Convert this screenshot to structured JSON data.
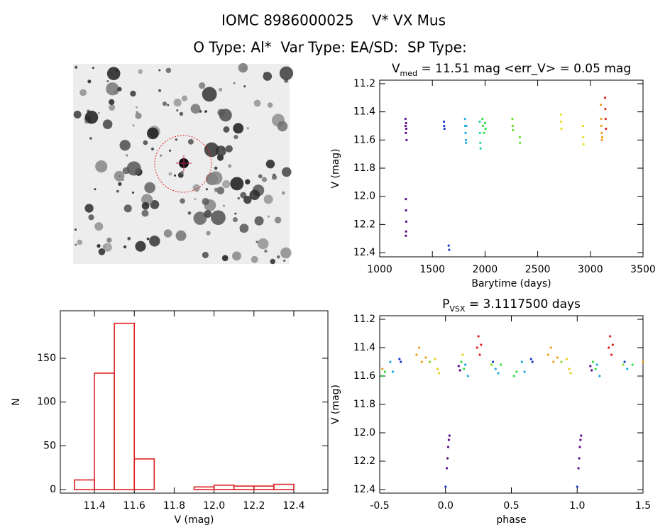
{
  "header": {
    "title": "IOMC 8986000025    V* VX Mus",
    "subtitle": "O Type: Al*  Var Type: EA/SD:  SP Type:"
  },
  "chart_data": [
    {
      "type": "scatter",
      "title": "V",
      "title_sub": "med",
      "title_rest": " = 11.51 mag <err_V> = 0.05 mag",
      "x_label": "Barytime (days)",
      "y_label": "V (mag)",
      "xlim": [
        1000,
        3500
      ],
      "ylim": [
        12.43,
        11.175
      ],
      "xticks": [
        1000,
        1500,
        2000,
        2500,
        3000,
        3500
      ],
      "yticks": [
        11.2,
        11.4,
        11.6,
        11.8,
        {
          "value": 12,
          "label": "12.0"
        },
        12.2,
        12.4
      ],
      "series": [
        {
          "color": "#5a0a8a",
          "x": [
            1245,
            1245,
            1248,
            1250,
            1252,
            1255,
            1248,
            1250,
            1252,
            1250,
            1248
          ],
          "values": [
            11.45,
            11.5,
            11.55,
            11.48,
            11.52,
            11.6,
            12.02,
            12.1,
            12.18,
            12.25,
            12.28
          ]
        },
        {
          "color": "#1a3cc8",
          "x": [
            1610,
            1612,
            1615,
            1655,
            1660
          ],
          "values": [
            11.47,
            11.5,
            11.52,
            12.35,
            12.38
          ]
        },
        {
          "color": "#20a8e0",
          "x": [
            1810,
            1812,
            1815,
            1818,
            1820,
            1822
          ],
          "values": [
            11.45,
            11.5,
            11.55,
            11.6,
            11.62,
            11.5
          ]
        },
        {
          "color": "#20d0b0",
          "x": [
            1950,
            1952,
            1955,
            1958
          ],
          "values": [
            11.47,
            11.55,
            11.62,
            11.66
          ]
        },
        {
          "color": "#30e040",
          "x": [
            1975,
            1980,
            1990,
            2000,
            2005
          ],
          "values": [
            11.45,
            11.5,
            11.55,
            11.48,
            11.52
          ]
        },
        {
          "color": "#60e020",
          "x": [
            2260,
            2262,
            2265,
            2330,
            2332
          ],
          "values": [
            11.45,
            11.5,
            11.53,
            11.58,
            11.62
          ]
        },
        {
          "color": "#e8e020",
          "x": [
            2720,
            2722,
            2725,
            2930,
            2932,
            2935
          ],
          "values": [
            11.42,
            11.47,
            11.52,
            11.5,
            11.58,
            11.63
          ]
        },
        {
          "color": "#f0a020",
          "x": [
            3100,
            3102,
            3105,
            3108,
            3110,
            3112
          ],
          "values": [
            11.35,
            11.45,
            11.5,
            11.55,
            11.6,
            11.58
          ]
        },
        {
          "color": "#e02020",
          "x": [
            3140,
            3142,
            3145,
            3148
          ],
          "values": [
            11.3,
            11.38,
            11.45,
            11.52
          ]
        }
      ]
    },
    {
      "type": "histogram",
      "x_label": "V (mag)",
      "y_label": "N",
      "color": "#e02020",
      "xlim": [
        11.229,
        12.571
      ],
      "ylim": [
        -4.05,
        204.3
      ],
      "xticks": [
        11.4,
        11.6,
        11.8,
        {
          "value": 12,
          "label": "12.0"
        },
        12.2,
        12.4
      ],
      "yticks": [
        0,
        50,
        100,
        150
      ],
      "bins": [
        11.3,
        11.4,
        11.5,
        11.6,
        11.7,
        11.8,
        11.9,
        12.0,
        12.1,
        12.2,
        12.3,
        12.4
      ],
      "values": [
        11,
        133,
        190,
        35,
        0,
        0,
        3,
        5,
        4,
        4,
        6
      ]
    },
    {
      "type": "scatter",
      "title": "P",
      "title_sub": "VSX",
      "title_rest": " = 3.1117500 days",
      "x_label": "phase",
      "y_label": "V (mag)",
      "xlim": [
        -0.5,
        1.5
      ],
      "ylim": [
        12.425,
        11.175
      ],
      "xticks": [
        -0.5,
        {
          "value": 0,
          "label": "0.0"
        },
        0.5,
        {
          "value": 1,
          "label": "1.0"
        },
        1.5
      ],
      "yticks": [
        11.2,
        11.4,
        11.6,
        11.8,
        {
          "value": 12,
          "label": "12.0"
        },
        12.2,
        12.4
      ],
      "series": [
        {
          "color": "#5a0a8a",
          "x": [
            0.01,
            0.015,
            0.02,
            0.025,
            0.03,
            0.1,
            0.11,
            1.01,
            1.015,
            1.02,
            1.025,
            1.03,
            1.1,
            1.11
          ],
          "values": [
            12.25,
            12.18,
            12.1,
            12.05,
            12.02,
            11.53,
            11.56,
            12.25,
            12.18,
            12.1,
            12.05,
            12.02,
            11.53,
            11.56
          ]
        },
        {
          "color": "#1a3cc8",
          "x": [
            -0.35,
            -0.34,
            0.0,
            0.36,
            0.65,
            0.66,
            1.0,
            1.36
          ],
          "values": [
            11.48,
            11.5,
            12.38,
            11.5,
            11.48,
            11.5,
            12.38,
            11.5
          ]
        },
        {
          "color": "#20a8e0",
          "x": [
            -0.42,
            -0.4,
            0.15,
            0.17,
            0.38,
            0.4,
            0.58,
            0.6,
            1.15,
            1.17,
            1.38
          ],
          "values": [
            11.5,
            11.57,
            11.52,
            11.6,
            11.55,
            11.58,
            11.5,
            11.57,
            11.52,
            11.6,
            11.55
          ]
        },
        {
          "color": "#30e040",
          "x": [
            -0.48,
            -0.46,
            0.12,
            0.14,
            0.42,
            0.52,
            0.54,
            1.12,
            1.14,
            1.42
          ],
          "values": [
            11.6,
            11.57,
            11.5,
            11.55,
            11.52,
            11.6,
            11.57,
            11.5,
            11.55,
            11.52
          ]
        },
        {
          "color": "#80e020",
          "x": [
            -0.12,
            0.35,
            0.88,
            1.35
          ],
          "values": [
            11.5,
            11.52,
            11.5,
            11.52
          ]
        },
        {
          "color": "#e8d020",
          "x": [
            -0.08,
            -0.06,
            -0.05,
            0.92,
            0.94,
            0.95,
            0.13
          ],
          "values": [
            11.48,
            11.55,
            11.58,
            11.48,
            11.55,
            11.58,
            11.45
          ]
        },
        {
          "color": "#f0a020",
          "x": [
            -0.22,
            -0.2,
            -0.18,
            -0.15,
            0.78,
            0.8,
            0.82,
            0.85,
            -0.48,
            1.5
          ],
          "values": [
            11.45,
            11.4,
            11.5,
            11.47,
            11.45,
            11.4,
            11.5,
            11.47,
            11.55,
            11.5
          ]
        },
        {
          "color": "#e02020",
          "x": [
            0.24,
            0.25,
            0.26,
            0.27,
            1.24,
            1.25,
            1.26,
            1.27
          ],
          "values": [
            11.4,
            11.32,
            11.45,
            11.38,
            11.4,
            11.32,
            11.45,
            11.38
          ]
        }
      ]
    }
  ]
}
